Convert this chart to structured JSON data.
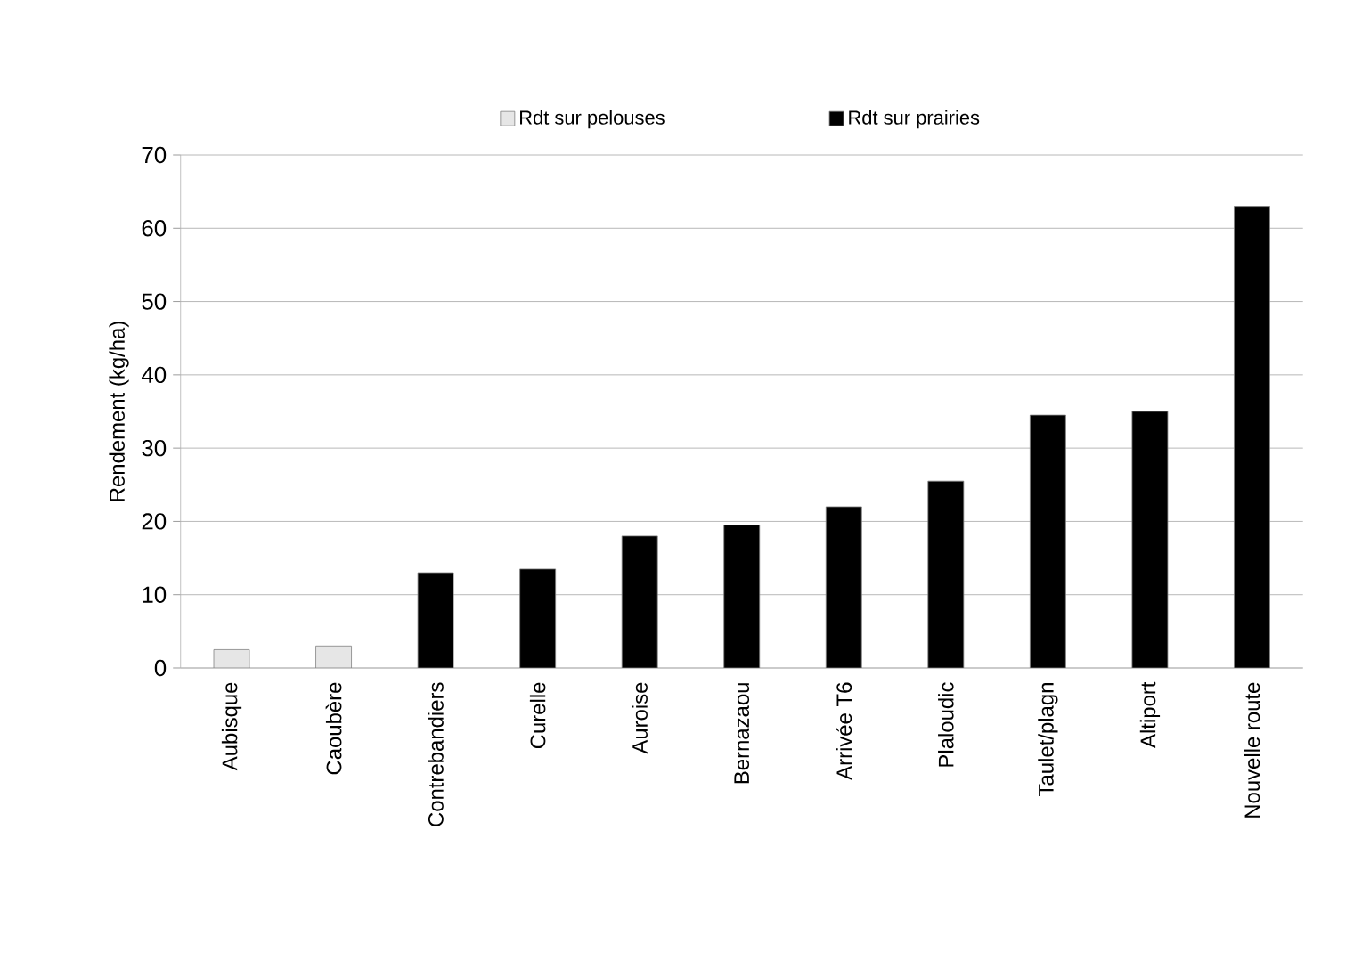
{
  "chart_data": {
    "type": "bar",
    "ylabel": "Rendement (kg/ha)",
    "categories": [
      "Aubisque",
      "Caoubère",
      "Contrebandiers",
      "Curelle",
      "Auroise",
      "Bernazaou",
      "Arrivée T6",
      "Plaloudic",
      "Taulet/plagn",
      "Altiport",
      "Nouvelle route"
    ],
    "series": [
      {
        "name": "Rdt sur pelouses",
        "color": "#e6e6e6",
        "values": [
          2.5,
          3,
          null,
          null,
          null,
          null,
          null,
          null,
          null,
          null,
          null
        ]
      },
      {
        "name": "Rdt sur prairies",
        "color": "#000000",
        "values": [
          null,
          null,
          13,
          13.5,
          18,
          19.5,
          22,
          25.5,
          34.5,
          35,
          63
        ]
      }
    ],
    "ylim": [
      0,
      70
    ],
    "yticks": [
      0,
      10,
      20,
      30,
      40,
      50,
      60,
      70
    ],
    "grid": "y",
    "legend": "top"
  }
}
